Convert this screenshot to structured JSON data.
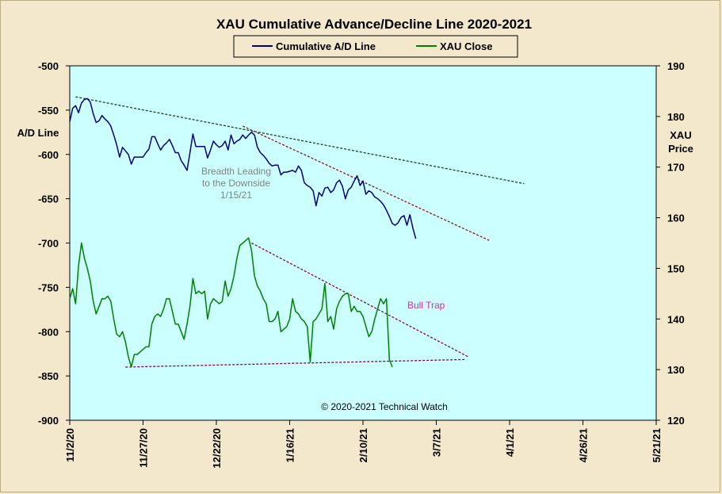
{
  "chart_data": {
    "type": "line",
    "title": "XAU Cumulative  Advance/Decline  Line  2020-2021",
    "ylabel_left_line1": "A/D Line",
    "ylabel_right_line1": "XAU",
    "ylabel_right_line2": "Price",
    "ylim_left": [
      -900,
      -500
    ],
    "ylim_right": [
      120,
      190
    ],
    "yticks_left": [
      "-500",
      "-550",
      "-600",
      "-650",
      "-700",
      "-750",
      "-800",
      "-850",
      "-900"
    ],
    "yticks_right": [
      "190",
      "180",
      "170",
      "160",
      "150",
      "140",
      "130",
      "120"
    ],
    "xticks": [
      "11/2/20",
      "11/27/20",
      "12/22/20",
      "1/16/21",
      "2/10/21",
      "3/7/21",
      "4/1/21",
      "4/26/21",
      "5/21/21"
    ],
    "x_range_days": [
      0,
      200
    ],
    "grid": false,
    "legend_position": "top-center",
    "colors": {
      "plot_bg": "#ccffff",
      "ad_line": "#00007f",
      "xau_close": "#007f00",
      "trend_dark": "#1e3f1e",
      "trend_red": "#8b1a1a",
      "trend_purple": "#800060",
      "annot_grey": "#808080",
      "annot_pink": "#e020c0"
    },
    "series": [
      {
        "name": "Cumulative A/D Line",
        "axis": "left",
        "points": [
          [
            0,
            -563
          ],
          [
            1,
            -548
          ],
          [
            2,
            -545
          ],
          [
            3,
            -553
          ],
          [
            4,
            -542
          ],
          [
            5,
            -538
          ],
          [
            6,
            -537
          ],
          [
            7,
            -541
          ],
          [
            8,
            -554
          ],
          [
            9,
            -564
          ],
          [
            10,
            -562
          ],
          [
            11,
            -556
          ],
          [
            12,
            -560
          ],
          [
            13,
            -563
          ],
          [
            14,
            -568
          ],
          [
            15,
            -578
          ],
          [
            16,
            -589
          ],
          [
            17,
            -603
          ],
          [
            18,
            -592
          ],
          [
            19,
            -596
          ],
          [
            20,
            -600
          ],
          [
            21,
            -611
          ],
          [
            22,
            -603
          ],
          [
            23,
            -603
          ],
          [
            24,
            -603
          ],
          [
            25,
            -603
          ],
          [
            26,
            -598
          ],
          [
            27,
            -594
          ],
          [
            28,
            -580
          ],
          [
            29,
            -580
          ],
          [
            30,
            -588
          ],
          [
            31,
            -595
          ],
          [
            32,
            -590
          ],
          [
            33,
            -587
          ],
          [
            34,
            -583
          ],
          [
            35,
            -590
          ],
          [
            36,
            -598
          ],
          [
            37,
            -598
          ],
          [
            38,
            -607
          ],
          [
            39,
            -612
          ],
          [
            40,
            -618
          ],
          [
            41,
            -598
          ],
          [
            42,
            -577
          ],
          [
            43,
            -591
          ],
          [
            44,
            -591
          ],
          [
            45,
            -591
          ],
          [
            46,
            -591
          ],
          [
            47,
            -604
          ],
          [
            48,
            -595
          ],
          [
            49,
            -585
          ],
          [
            50,
            -589
          ],
          [
            51,
            -592
          ],
          [
            52,
            -590
          ],
          [
            53,
            -585
          ],
          [
            54,
            -595
          ],
          [
            55,
            -578
          ],
          [
            56,
            -588
          ],
          [
            57,
            -585
          ],
          [
            58,
            -583
          ],
          [
            59,
            -578
          ],
          [
            60,
            -582
          ],
          [
            61,
            -578
          ],
          [
            62,
            -575
          ],
          [
            63,
            -578
          ],
          [
            64,
            -592
          ],
          [
            65,
            -598
          ],
          [
            66,
            -601
          ],
          [
            67,
            -605
          ],
          [
            68,
            -610
          ],
          [
            69,
            -613
          ],
          [
            70,
            -612
          ],
          [
            71,
            -612
          ],
          [
            72,
            -623
          ],
          [
            73,
            -620
          ],
          [
            74,
            -620
          ],
          [
            75,
            -619
          ],
          [
            76,
            -618
          ],
          [
            77,
            -620
          ],
          [
            78,
            -613
          ],
          [
            79,
            -618
          ],
          [
            80,
            -632
          ],
          [
            81,
            -635
          ],
          [
            82,
            -637
          ],
          [
            83,
            -641
          ],
          [
            84,
            -658
          ],
          [
            85,
            -643
          ],
          [
            86,
            -647
          ],
          [
            87,
            -638
          ],
          [
            88,
            -637
          ],
          [
            89,
            -643
          ],
          [
            90,
            -640
          ],
          [
            91,
            -632
          ],
          [
            92,
            -629
          ],
          [
            93,
            -636
          ],
          [
            94,
            -650
          ],
          [
            95,
            -640
          ],
          [
            96,
            -637
          ],
          [
            97,
            -630
          ],
          [
            98,
            -624
          ],
          [
            99,
            -635
          ],
          [
            100,
            -630
          ],
          [
            101,
            -645
          ],
          [
            102,
            -641
          ],
          [
            103,
            -643
          ],
          [
            104,
            -648
          ],
          [
            105,
            -650
          ],
          [
            106,
            -653
          ],
          [
            107,
            -657
          ],
          [
            108,
            -663
          ],
          [
            109,
            -670
          ],
          [
            110,
            -678
          ],
          [
            111,
            -680
          ],
          [
            112,
            -677
          ],
          [
            113,
            -671
          ],
          [
            114,
            -669
          ],
          [
            115,
            -680
          ],
          [
            116,
            -668
          ],
          [
            117,
            -683
          ],
          [
            118,
            -695
          ]
        ]
      },
      {
        "name": "XAU Close",
        "axis": "right",
        "points": [
          [
            0,
            144.0
          ],
          [
            1,
            146.0
          ],
          [
            2,
            143.0
          ],
          [
            3,
            150.5
          ],
          [
            4,
            155.0
          ],
          [
            5,
            152.0
          ],
          [
            6,
            150.0
          ],
          [
            7,
            147.5
          ],
          [
            8,
            143.5
          ],
          [
            9,
            141.0
          ],
          [
            10,
            142.5
          ],
          [
            11,
            144.0
          ],
          [
            12,
            144.0
          ],
          [
            13,
            144.5
          ],
          [
            14,
            143.5
          ],
          [
            15,
            140.0
          ],
          [
            16,
            137.0
          ],
          [
            17,
            136.5
          ],
          [
            18,
            137.5
          ],
          [
            19,
            135.5
          ],
          [
            20,
            132.5
          ],
          [
            21,
            130.5
          ],
          [
            22,
            133.0
          ],
          [
            23,
            133.0
          ],
          [
            24,
            133.5
          ],
          [
            25,
            134.0
          ],
          [
            26,
            134.5
          ],
          [
            27,
            134.5
          ],
          [
            28,
            139.0
          ],
          [
            29,
            140.5
          ],
          [
            30,
            141.0
          ],
          [
            31,
            140.5
          ],
          [
            32,
            142.0
          ],
          [
            33,
            144.0
          ],
          [
            34,
            144.0
          ],
          [
            35,
            141.5
          ],
          [
            36,
            139.0
          ],
          [
            37,
            139.0
          ],
          [
            38,
            137.5
          ],
          [
            39,
            136.0
          ],
          [
            40,
            139.0
          ],
          [
            41,
            142.5
          ],
          [
            42,
            148.0
          ],
          [
            43,
            145.0
          ],
          [
            44,
            145.5
          ],
          [
            45,
            145.0
          ],
          [
            46,
            145.5
          ],
          [
            47,
            140.0
          ],
          [
            48,
            143.0
          ],
          [
            49,
            144.0
          ],
          [
            50,
            143.5
          ],
          [
            51,
            143.0
          ],
          [
            52,
            143.5
          ],
          [
            53,
            147.5
          ],
          [
            54,
            144.5
          ],
          [
            55,
            146.0
          ],
          [
            56,
            148.5
          ],
          [
            57,
            152.0
          ],
          [
            58,
            154.5
          ],
          [
            59,
            155.0
          ],
          [
            60,
            155.5
          ],
          [
            61,
            156.0
          ],
          [
            62,
            153.5
          ],
          [
            63,
            148.5
          ],
          [
            64,
            146.5
          ],
          [
            65,
            145.5
          ],
          [
            66,
            144.0
          ],
          [
            67,
            143.0
          ],
          [
            68,
            139.5
          ],
          [
            69,
            139.5
          ],
          [
            70,
            140.0
          ],
          [
            71,
            141.5
          ],
          [
            72,
            137.5
          ],
          [
            73,
            138.0
          ],
          [
            74,
            138.5
          ],
          [
            75,
            140.0
          ],
          [
            76,
            144.0
          ],
          [
            77,
            141.5
          ],
          [
            78,
            141.0
          ],
          [
            79,
            140.0
          ],
          [
            80,
            139.5
          ],
          [
            81,
            138.5
          ],
          [
            82,
            131.5
          ],
          [
            83,
            139.5
          ],
          [
            84,
            140.0
          ],
          [
            85,
            141.0
          ],
          [
            86,
            142.0
          ],
          [
            87,
            147.0
          ],
          [
            88,
            139.5
          ],
          [
            89,
            140.5
          ],
          [
            90,
            138.0
          ],
          [
            91,
            142.0
          ],
          [
            92,
            143.5
          ],
          [
            93,
            144.5
          ],
          [
            94,
            145.0
          ],
          [
            95,
            145.0
          ],
          [
            96,
            141.5
          ],
          [
            97,
            142.5
          ],
          [
            98,
            141.5
          ],
          [
            99,
            141.5
          ],
          [
            100,
            140.5
          ],
          [
            101,
            138.5
          ],
          [
            102,
            136.5
          ],
          [
            103,
            137.5
          ],
          [
            104,
            140.0
          ],
          [
            105,
            142.0
          ],
          [
            106,
            144.0
          ],
          [
            107,
            143.0
          ],
          [
            108,
            144.0
          ],
          [
            109,
            132.0
          ],
          [
            110,
            130.5
          ]
        ]
      }
    ],
    "trendlines": [
      {
        "color_key": "trend_dark",
        "axis": "left",
        "from": [
          2,
          -535
        ],
        "to": [
          155,
          -633
        ]
      },
      {
        "color_key": "trend_red",
        "axis": "left",
        "from": [
          59,
          -568
        ],
        "to": [
          143,
          -697
        ]
      },
      {
        "color_key": "trend_purple",
        "axis": "right",
        "from": [
          62,
          155.0
        ],
        "to": [
          136,
          132.5
        ]
      },
      {
        "color_key": "trend_purple",
        "axis": "right",
        "from": [
          19,
          130.5
        ],
        "to": [
          135,
          132.0
        ]
      }
    ],
    "annotations": [
      {
        "lines": [
          "Breadth Leading",
          "to the Downside",
          "1/15/21"
        ],
        "color_key": "annot_grey"
      },
      {
        "lines": [
          "Bull Trap"
        ],
        "color_key": "annot_pink"
      },
      {
        "lines": [
          "© 2020-2021  Technical  Watch"
        ],
        "color_key": "black"
      }
    ]
  }
}
